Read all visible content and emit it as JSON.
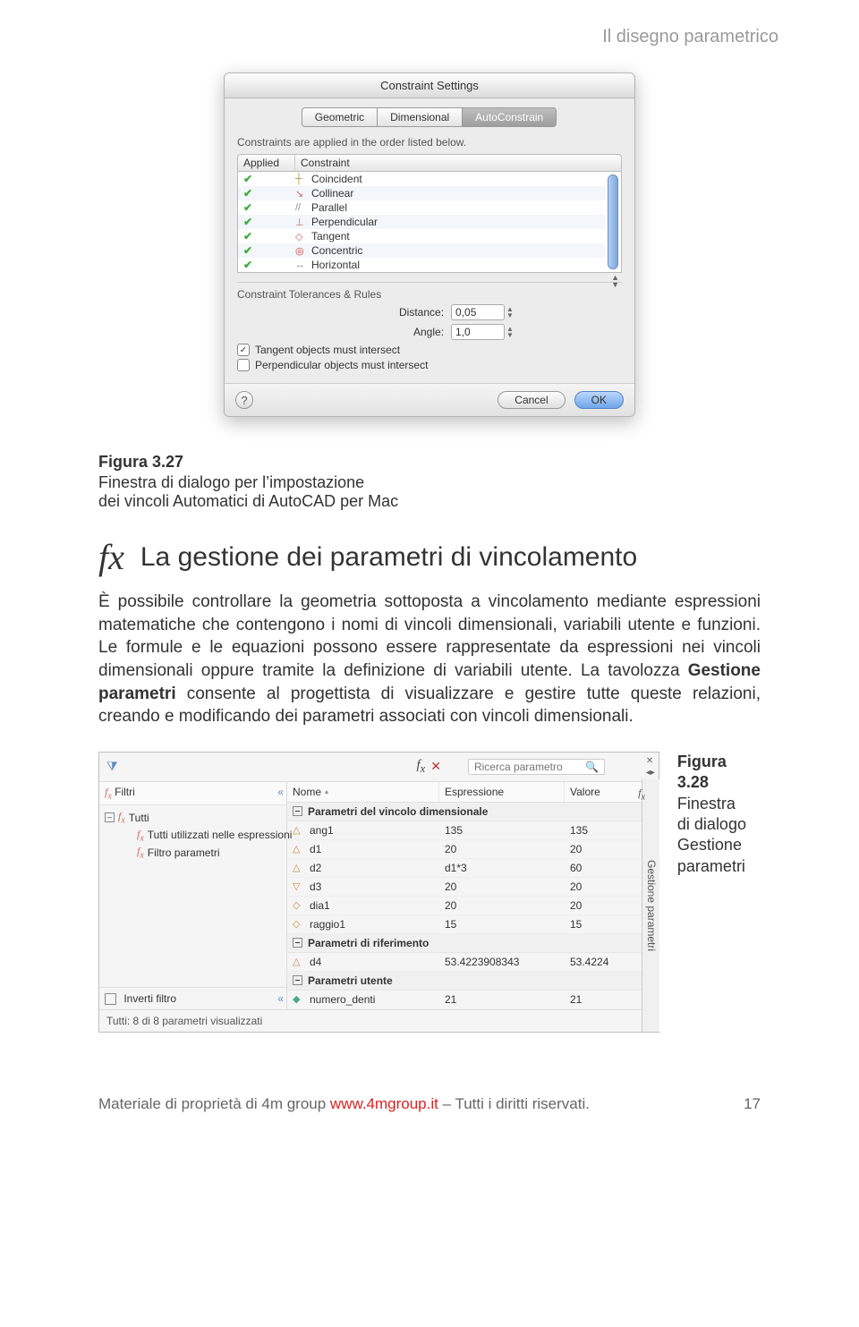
{
  "header": {
    "title": "Il disegno parametrico"
  },
  "mac": {
    "title": "Constraint Settings",
    "tabs": [
      "Geometric",
      "Dimensional",
      "AutoConstrain"
    ],
    "active_tab": 2,
    "note": "Constraints are applied in the order listed below.",
    "col_applied": "Applied",
    "col_constraint": "Constraint",
    "rows": [
      {
        "checked": true,
        "icon": "┼",
        "icon_color": "#b84",
        "label": "Coincident"
      },
      {
        "checked": true,
        "icon": "↘",
        "icon_color": "#c66",
        "label": "Collinear"
      },
      {
        "checked": true,
        "icon": "//",
        "icon_color": "#888",
        "label": "Parallel"
      },
      {
        "checked": true,
        "icon": "⊥",
        "icon_color": "#c66",
        "label": "Perpendicular"
      },
      {
        "checked": true,
        "icon": "◇",
        "icon_color": "#c66",
        "label": "Tangent"
      },
      {
        "checked": true,
        "icon": "◎",
        "icon_color": "#c44",
        "label": "Concentric"
      },
      {
        "checked": true,
        "icon": "↔",
        "icon_color": "#888",
        "label": "Horizontal"
      }
    ],
    "section_title": "Constraint Tolerances & Rules",
    "distance_label": "Distance:",
    "distance_value": "0,05",
    "angle_label": "Angle:",
    "angle_value": "1,0",
    "chk1_label": "Tangent objects must intersect",
    "chk1_checked": true,
    "chk2_label": "Perpendicular objects must intersect",
    "chk2_checked": false,
    "btn_cancel": "Cancel",
    "btn_ok": "OK"
  },
  "caption1": {
    "title": "Figura 3.27",
    "body": "Finestra di dialogo per l’impostazione\ndei vincoli Automatici di AutoCAD per Mac"
  },
  "section": {
    "icon_text": "fx",
    "heading": "La gestione dei parametri di vincolamento",
    "paragraph_a": "È possibile controllare la geometria sottoposta a vincolamento mediante espressioni matematiche che contengono i nomi di vincoli dimensionali, variabili utente e funzioni. Le formule e le equazioni possono essere rappresentate da espressioni nei vincoli dimensionali oppure tramite la definizione di variabili utente. La tavolozza ",
    "paragraph_bold": "Gestione parametri",
    "paragraph_b": " consente al progettista di visualizzare e gestire tutte queste relazioni, creando e modificando dei parametri associati con vincoli dimensionali."
  },
  "caption2": {
    "title": "Figura 3.28",
    "body": "Finestra\ndi dialogo\nGestione\nparametri"
  },
  "win": {
    "search_placeholder": "Ricerca parametro",
    "left_title": "Filtri",
    "tree": {
      "root": "Tutti",
      "child1": "Tutti utilizzati nelle espressioni",
      "child2": "Filtro parametri"
    },
    "invert_label": "Inverti filtro",
    "col_name": "Nome",
    "col_exp": "Espressione",
    "col_val": "Valore",
    "grp1": "Parametri del vincolo dimensionale",
    "rows1": [
      {
        "icon": "△",
        "name": "ang1",
        "exp": "135",
        "val": "135"
      },
      {
        "icon": "△",
        "name": "d1",
        "exp": "20",
        "val": "20"
      },
      {
        "icon": "△",
        "name": "d2",
        "exp": "d1*3",
        "val": "60"
      },
      {
        "icon": "▽",
        "name": "d3",
        "exp": "20",
        "val": "20"
      },
      {
        "icon": "◇",
        "name": "dia1",
        "exp": "20",
        "val": "20"
      },
      {
        "icon": "◇",
        "name": "raggio1",
        "exp": "15",
        "val": "15"
      }
    ],
    "grp2": "Parametri di riferimento",
    "rows2": [
      {
        "icon": "△",
        "name": "d4",
        "exp": "53.4223908343",
        "val": "53.4224"
      }
    ],
    "grp3": "Parametri utente",
    "rows3": [
      {
        "icon": "◆",
        "name": "numero_denti",
        "exp": "21",
        "val": "21"
      }
    ],
    "status": "Tutti: 8 di 8 parametri visualizzati",
    "side_tab": "Gestione parametri"
  },
  "footer": {
    "left_a": "Materiale di proprietà di 4m group ",
    "left_link": "www.4mgroup.it",
    "left_b": " – Tutti i diritti riservati.",
    "page": "17"
  },
  "colors": {
    "header_text": "#999999",
    "accent_blue": "#6fa4ea",
    "link_red": "#d22"
  }
}
